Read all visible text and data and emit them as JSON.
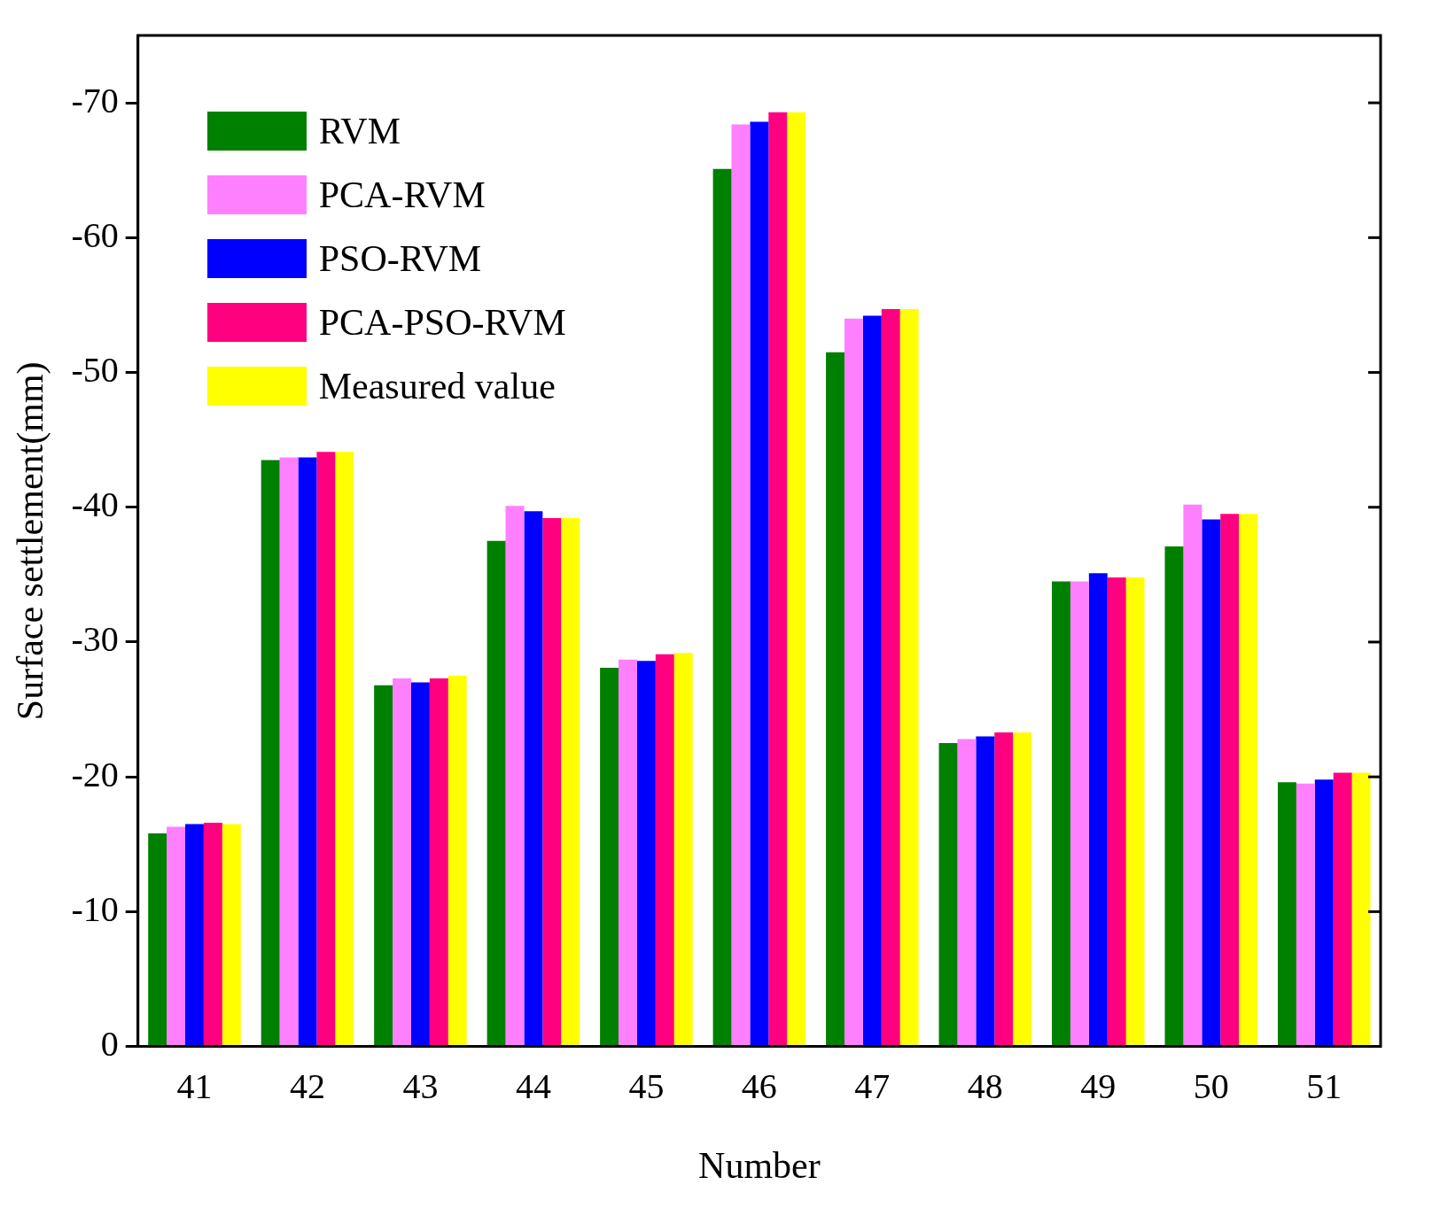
{
  "chart_data": {
    "type": "bar",
    "xlabel": "Number",
    "ylabel": "Surface settlement(mm)",
    "categories": [
      "41",
      "42",
      "43",
      "44",
      "45",
      "46",
      "47",
      "48",
      "49",
      "50",
      "51"
    ],
    "series": [
      {
        "name": "RVM",
        "color": "#008000",
        "values": [
          -15.8,
          -43.5,
          -26.8,
          -37.5,
          -28.1,
          -65.1,
          -51.5,
          -22.5,
          -34.5,
          -37.1,
          -19.6
        ]
      },
      {
        "name": "PCA-RVM",
        "color": "#ff80ff",
        "values": [
          -16.3,
          -43.7,
          -27.3,
          -40.1,
          -28.7,
          -68.4,
          -54.0,
          -22.8,
          -34.5,
          -40.2,
          -19.5
        ]
      },
      {
        "name": "PSO-RVM",
        "color": "#0000ff",
        "values": [
          -16.5,
          -43.7,
          -27.0,
          -39.7,
          -28.6,
          -68.6,
          -54.2,
          -23.0,
          -35.1,
          -39.1,
          -19.8
        ]
      },
      {
        "name": "PCA-PSO-RVM",
        "color": "#ff0080",
        "values": [
          -16.6,
          -44.1,
          -27.3,
          -39.2,
          -29.1,
          -69.3,
          -54.7,
          -23.3,
          -34.8,
          -39.5,
          -20.3
        ]
      },
      {
        "name": "Measured value",
        "color": "#ffff00",
        "values": [
          -16.5,
          -44.1,
          -27.5,
          -39.2,
          -29.2,
          -69.3,
          -54.7,
          -23.3,
          -34.8,
          -39.5,
          -20.3
        ]
      }
    ],
    "ylim": [
      0,
      -75
    ],
    "yticks": [
      0,
      -10,
      -20,
      -30,
      -40,
      -50,
      -60,
      -70
    ],
    "grid": false,
    "legend": "top left"
  }
}
